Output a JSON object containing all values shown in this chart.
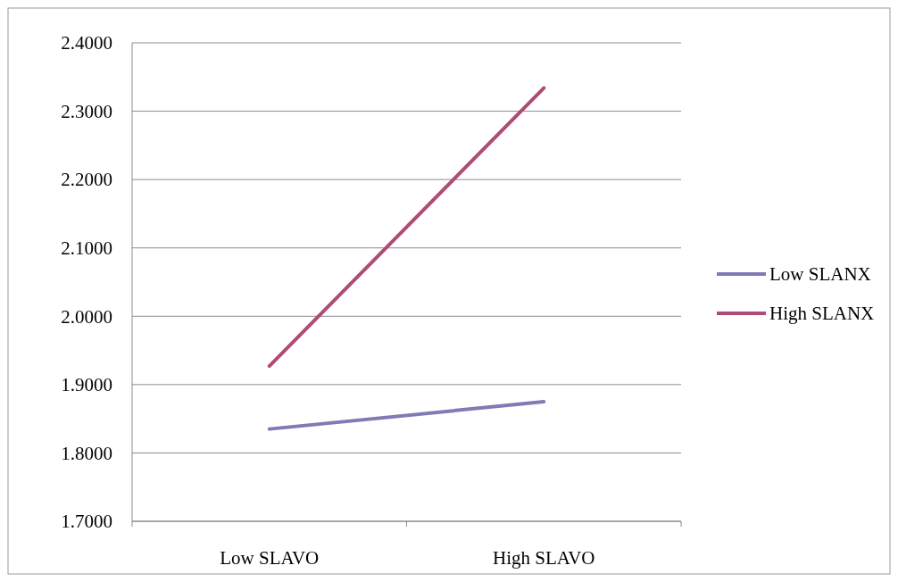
{
  "chart_data": {
    "type": "line",
    "categories": [
      "Low SLAVO",
      "High SLAVO"
    ],
    "series": [
      {
        "name": "Low SLANX",
        "color": "#7f7bb5",
        "values": [
          1.835,
          1.875
        ]
      },
      {
        "name": "High SLANX",
        "color": "#b04a77",
        "values": [
          1.927,
          2.334
        ]
      }
    ],
    "ylim": [
      1.7,
      2.4
    ],
    "yticks": [
      {
        "value": 1.7,
        "label": "1.7000"
      },
      {
        "value": 1.8,
        "label": "1.8000"
      },
      {
        "value": 1.9,
        "label": "1.9000"
      },
      {
        "value": 2.0,
        "label": "2.0000"
      },
      {
        "value": 2.1,
        "label": "2.1000"
      },
      {
        "value": 2.2,
        "label": "2.2000"
      },
      {
        "value": 2.3,
        "label": "2.3000"
      },
      {
        "value": 2.4,
        "label": "2.4000"
      }
    ],
    "grid": "y",
    "legend": "right",
    "marker": "none",
    "line_style": "solid"
  }
}
